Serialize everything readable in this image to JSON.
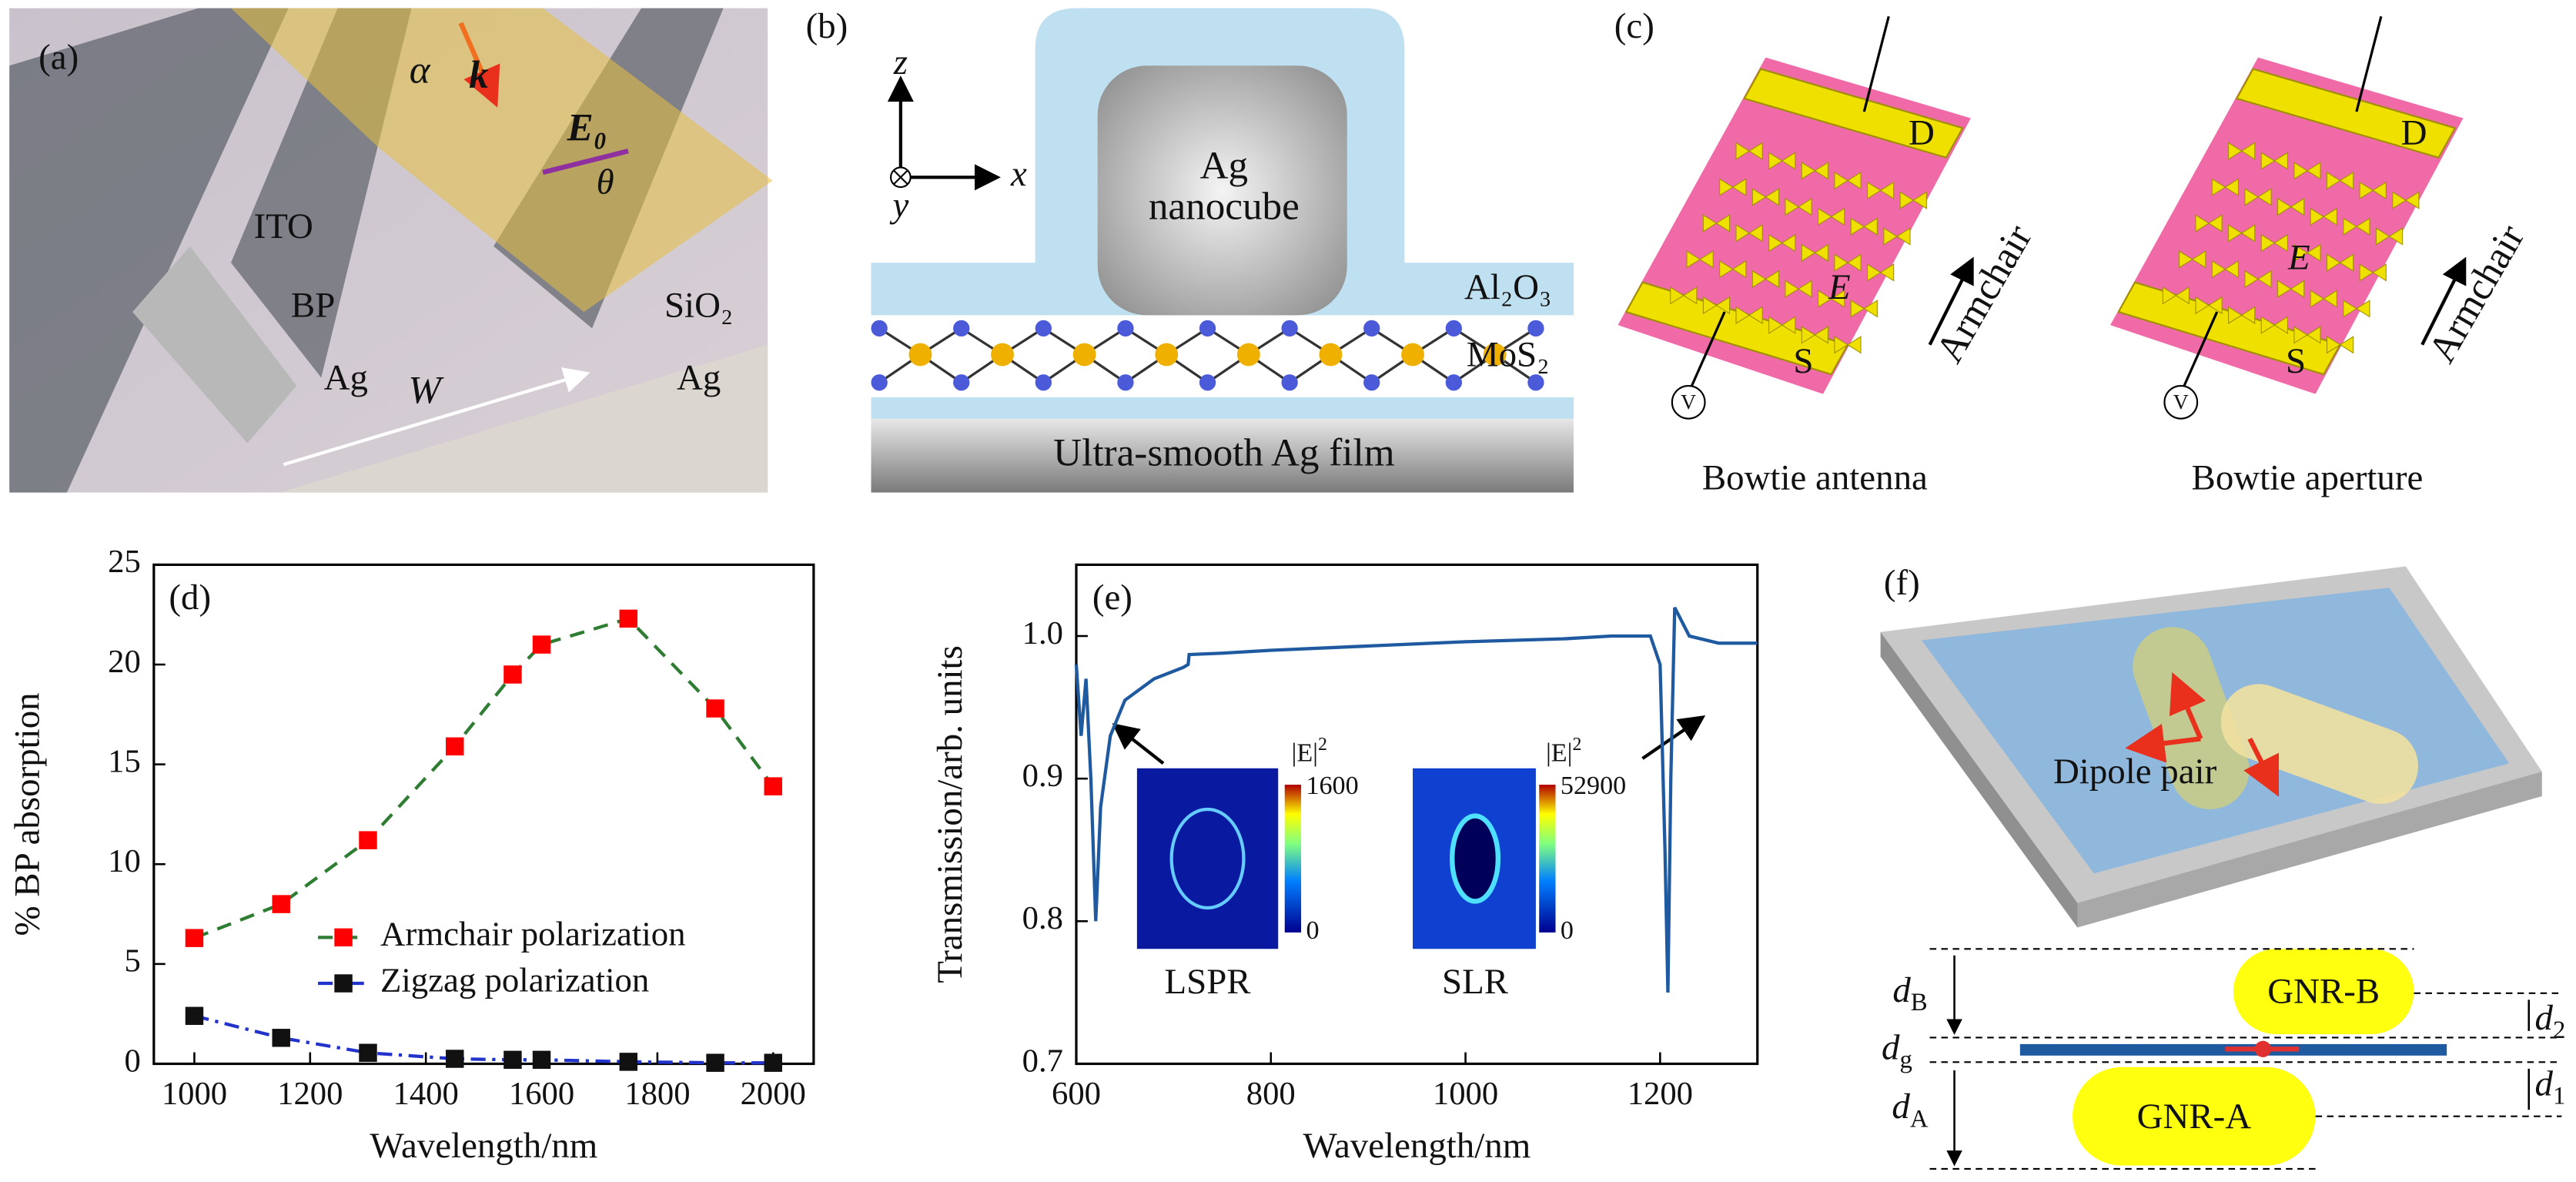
{
  "panels": {
    "a": {
      "label": "(a)",
      "alpha": "α",
      "k": "k",
      "e0": "E₀",
      "theta": "θ",
      "ito": "ITO",
      "bp": "BP",
      "ag_left": "Ag",
      "w": "W",
      "sio2": "SiO₂",
      "ag_right": "Ag"
    },
    "b": {
      "label": "(b)",
      "z": "z",
      "y": "y",
      "x": "x",
      "cube": [
        "Ag",
        "nanocube"
      ],
      "al2o3": "Al₂O₃",
      "mos2": "MoS₂",
      "film": "Ultra-smooth Ag film"
    },
    "c": {
      "label": "(c)",
      "devices": [
        {
          "drain": "D",
          "source": "S",
          "field": "E",
          "direction": "Armchair",
          "voltage": "V",
          "caption": "Bowtie antenna"
        },
        {
          "drain": "D",
          "source": "S",
          "field": "E",
          "direction": "Armchair",
          "voltage": "V",
          "caption": "Bowtie aperture"
        }
      ]
    },
    "f": {
      "label": "(f)",
      "dipole": "Dipole pair",
      "gnr_b": "GNR-B",
      "gnr_a": "GNR-A",
      "d_b": {
        "base": "d",
        "sub": "B"
      },
      "d_g": {
        "base": "d",
        "sub": "g"
      },
      "d_a": {
        "base": "d",
        "sub": "A"
      },
      "d_2": {
        "base": "d",
        "sub": "2"
      },
      "d_1": {
        "base": "d",
        "sub": "1"
      }
    }
  },
  "chart_data": [
    {
      "type": "line",
      "panel_label": "(d)",
      "xlabel": "Wavelength/nm",
      "ylabel": "% BP absorption",
      "x": [
        1000,
        1150,
        1300,
        1450,
        1550,
        1600,
        1750,
        1900,
        2000
      ],
      "series": [
        {
          "name": "Armchair polarization",
          "color": "#ff0000",
          "line_color": "#2e7d32",
          "marker": "square",
          "dash": "9 6",
          "values": [
            6.3,
            8.0,
            11.2,
            15.9,
            19.5,
            21.0,
            22.3,
            17.8,
            13.9
          ]
        },
        {
          "name": "Zigzag polarization",
          "color": "#111111",
          "line_color": "#2233cc",
          "marker": "square",
          "dash": "9 4 2 4",
          "values": [
            2.4,
            1.3,
            0.55,
            0.25,
            0.2,
            0.2,
            0.1,
            0.05,
            0.05
          ]
        }
      ],
      "xlim": [
        930,
        2070
      ],
      "ylim": [
        0,
        25
      ],
      "xticks": [
        1000,
        1200,
        1400,
        1600,
        1800,
        2000
      ],
      "yticks": [
        0,
        5,
        10,
        15,
        20,
        25
      ],
      "legend": "lower left"
    },
    {
      "type": "line",
      "panel_label": "(e)",
      "xlabel": "Wavelength/nm",
      "ylabel": "Transmission/arb. units",
      "x": [
        600,
        605,
        610,
        615,
        620,
        625,
        635,
        650,
        680,
        710,
        715,
        716,
        750,
        800,
        900,
        1000,
        1100,
        1150,
        1190,
        1200,
        1205,
        1208,
        1211,
        1215,
        1230,
        1260,
        1300
      ],
      "series": [
        {
          "name": null,
          "color": "#1f5aa0",
          "line_color": "#1f5aa0",
          "values": [
            0.98,
            0.93,
            0.97,
            0.9,
            0.8,
            0.88,
            0.93,
            0.955,
            0.97,
            0.978,
            0.98,
            0.987,
            0.988,
            0.99,
            0.993,
            0.996,
            0.998,
            1.0,
            1.0,
            0.98,
            0.85,
            0.75,
            0.9,
            1.02,
            1.0,
            0.995,
            0.995
          ]
        }
      ],
      "xlim": [
        600,
        1300
      ],
      "ylim": [
        0.7,
        1.05
      ],
      "xticks": [
        600,
        800,
        1000,
        1200
      ],
      "yticks": [
        0.7,
        0.8,
        0.9,
        {
          "value": 1,
          "label": "1.0"
        }
      ],
      "insets": [
        {
          "caption": "LSPR",
          "colorbar_title": {
            "base": "|E|",
            "sup": "2"
          },
          "colorbar_ticks": [
            0,
            1600
          ]
        },
        {
          "caption": "SLR",
          "colorbar_title": {
            "base": "|E|",
            "sup": "2"
          },
          "colorbar_ticks": [
            0,
            52900
          ]
        }
      ]
    }
  ]
}
